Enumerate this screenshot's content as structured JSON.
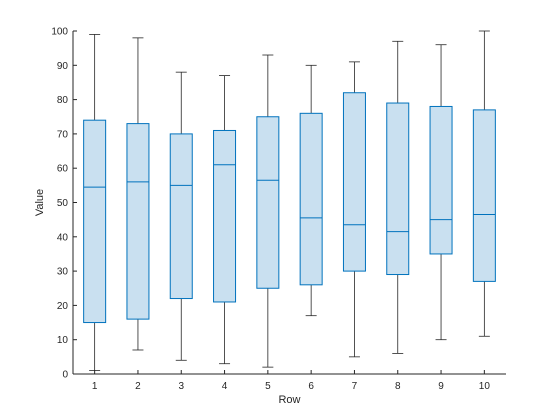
{
  "chart_data": {
    "type": "box",
    "xlabel": "Row",
    "ylabel": "Value",
    "ylim": [
      0,
      100
    ],
    "yticks": [
      0,
      10,
      20,
      30,
      40,
      50,
      60,
      70,
      80,
      90,
      100
    ],
    "categories": [
      "1",
      "2",
      "3",
      "4",
      "5",
      "6",
      "7",
      "8",
      "9",
      "10"
    ],
    "boxes": [
      {
        "category": "1",
        "min": 1,
        "q1": 15,
        "median": 54.5,
        "q3": 74,
        "max": 99
      },
      {
        "category": "2",
        "min": 7,
        "q1": 16,
        "median": 56,
        "q3": 73,
        "max": 98
      },
      {
        "category": "3",
        "min": 4,
        "q1": 22,
        "median": 55,
        "q3": 70,
        "max": 88
      },
      {
        "category": "4",
        "min": 3,
        "q1": 21,
        "median": 61,
        "q3": 71,
        "max": 87
      },
      {
        "category": "5",
        "min": 2,
        "q1": 25,
        "median": 56.5,
        "q3": 75,
        "max": 93
      },
      {
        "category": "6",
        "min": 17,
        "q1": 26,
        "median": 45.5,
        "q3": 76,
        "max": 90
      },
      {
        "category": "7",
        "min": 5,
        "q1": 30,
        "median": 43.5,
        "q3": 82,
        "max": 91
      },
      {
        "category": "8",
        "min": 6,
        "q1": 29,
        "median": 41.5,
        "q3": 79,
        "max": 97
      },
      {
        "category": "9",
        "min": 10,
        "q1": 35,
        "median": 45,
        "q3": 78,
        "max": 96
      },
      {
        "category": "10",
        "min": 11,
        "q1": 27,
        "median": 46.5,
        "q3": 77,
        "max": 100
      }
    ],
    "grid": false,
    "colors": {
      "box_fill": "#c9e0f0",
      "box_edge": "#0072bd",
      "whisker": "#262626",
      "axis": "#262626"
    }
  }
}
